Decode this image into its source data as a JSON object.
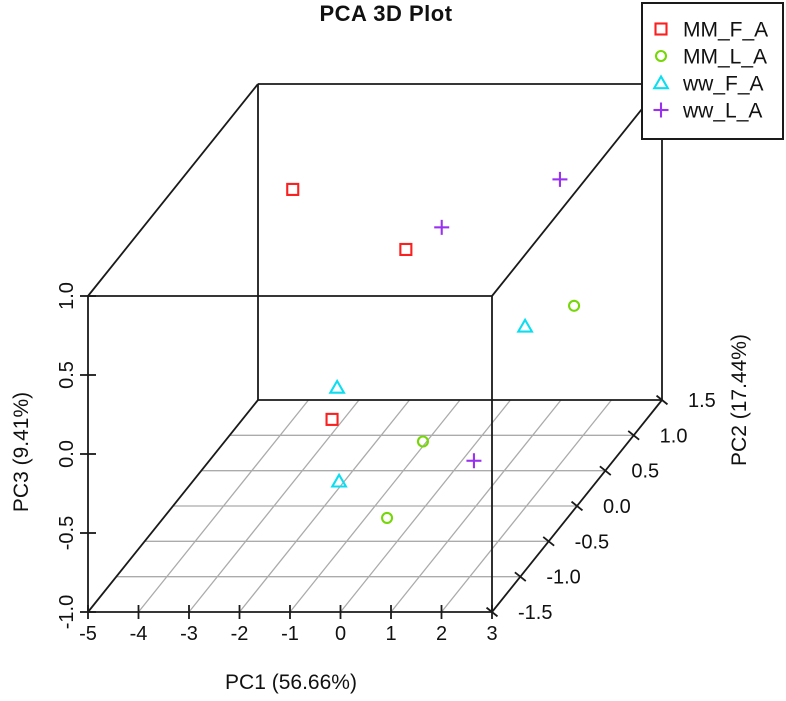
{
  "chart_data": {
    "type": "scatter3d",
    "title": "PCA 3D Plot",
    "axes": {
      "x": {
        "label": "PC1 (56.66%)",
        "range": [
          -5,
          3
        ],
        "ticks": [
          -5,
          -4,
          -3,
          -2,
          -1,
          0,
          1,
          2,
          3
        ],
        "tick_labels": [
          "-5",
          "-4",
          "-3",
          "-2",
          "-1",
          "0",
          "1",
          "2",
          "3"
        ]
      },
      "y": {
        "label": "PC2 (17.44%)",
        "range": [
          -1.5,
          1.5
        ],
        "ticks": [
          -1.5,
          -1.0,
          -0.5,
          0.0,
          0.5,
          1.0,
          1.5
        ],
        "tick_labels": [
          "-1.5",
          "-1.0",
          "-0.5",
          "0.0",
          "0.5",
          "1.0",
          "1.5"
        ]
      },
      "z": {
        "label": "PC3 (9.41%)",
        "range": [
          -1,
          1
        ],
        "ticks": [
          -1.0,
          -0.5,
          0.0,
          0.5,
          1.0
        ],
        "tick_labels": [
          "-1.0",
          "-0.5",
          "0.0",
          "0.5",
          "1.0"
        ]
      }
    },
    "grid": {
      "floor": true,
      "grid_color": "#ababab",
      "frame_color": "#1a1a1a"
    },
    "legend": {
      "position": "top-right",
      "entries": [
        {
          "label": "MM_F_A",
          "marker": "square",
          "color": "#fb1f1f"
        },
        {
          "label": "MM_L_A",
          "marker": "circle",
          "color": "#76d707"
        },
        {
          "label": "ww_F_A",
          "marker": "triangle",
          "color": "#0cdef0"
        },
        {
          "label": "ww_L_A",
          "marker": "plus",
          "color": "#9a30f0"
        }
      ]
    },
    "series": [
      {
        "name": "MM_F_A",
        "marker": "square",
        "color": "#fb1f1f",
        "points": [
          [
            -3.19,
            0.5,
            0.78
          ],
          [
            -0.95,
            0.5,
            0.4
          ],
          [
            -1.57,
            -0.25,
            -0.34
          ]
        ]
      },
      {
        "name": "MM_L_A",
        "marker": "circle",
        "color": "#76d707",
        "points": [
          [
            1.82,
            1.0,
            -0.18
          ],
          [
            0.23,
            -0.25,
            -0.48
          ],
          [
            0.08,
            -0.75,
            -0.74
          ]
        ]
      },
      {
        "name": "ww_F_A",
        "marker": "triangle",
        "color": "#0cdef0",
        "points": [
          [
            0.85,
            1.0,
            -0.31
          ],
          [
            -1.75,
            0.0,
            -0.25
          ],
          [
            -1.15,
            -0.5,
            -0.62
          ]
        ]
      },
      {
        "name": "ww_L_A",
        "marker": "plus",
        "color": "#9a30f0",
        "points": [
          [
            1.54,
            1.0,
            0.62
          ],
          [
            -0.24,
            0.5,
            0.54
          ],
          [
            1.52,
            -0.5,
            -0.49
          ]
        ]
      }
    ]
  }
}
